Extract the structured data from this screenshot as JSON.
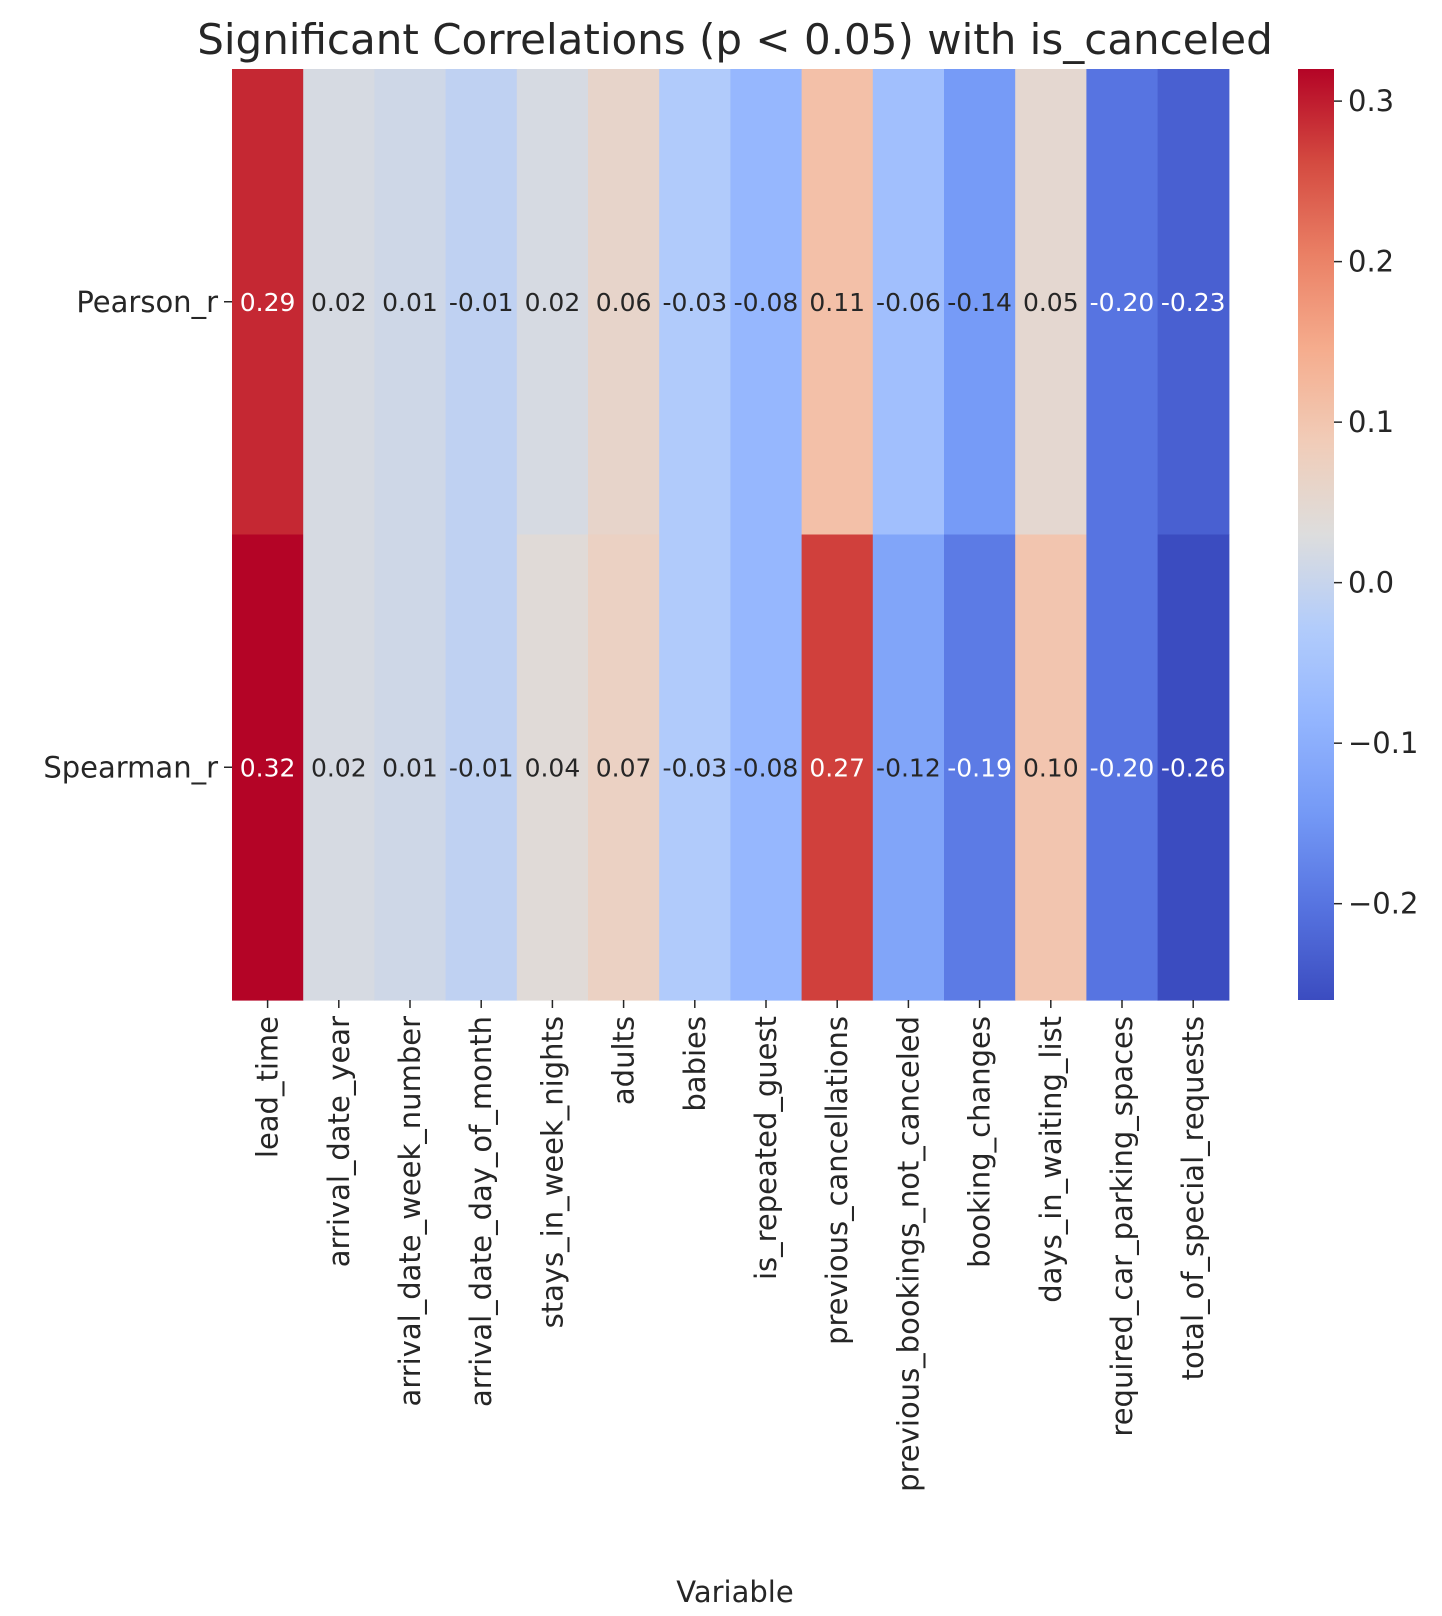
{
  "chart_data": {
    "type": "heatmap",
    "title": "Significant Correlations (p < 0.05) with is_canceled",
    "xlabel": "Variable",
    "ylabel": "",
    "columns": [
      "lead_time",
      "arrival_date_year",
      "arrival_date_week_number",
      "arrival_date_day_of_month",
      "stays_in_week_nights",
      "adults",
      "babies",
      "is_repeated_guest",
      "previous_cancellations",
      "previous_bookings_not_canceled",
      "booking_changes",
      "days_in_waiting_list",
      "required_car_parking_spaces",
      "total_of_special_requests"
    ],
    "rows": [
      "Pearson_r",
      "Spearman_r"
    ],
    "values": [
      [
        0.29,
        0.02,
        0.01,
        -0.01,
        0.02,
        0.06,
        -0.03,
        -0.08,
        0.11,
        -0.06,
        -0.14,
        0.05,
        -0.2,
        -0.23
      ],
      [
        0.32,
        0.02,
        0.01,
        -0.01,
        0.04,
        0.07,
        -0.03,
        -0.08,
        0.27,
        -0.12,
        -0.19,
        0.1,
        -0.2,
        -0.26
      ]
    ],
    "value_labels": [
      [
        "0.29",
        "0.02",
        "0.01",
        "-0.01",
        "0.02",
        "0.06",
        "-0.03",
        "-0.08",
        "0.11",
        "-0.06",
        "-0.14",
        "0.05",
        "-0.20",
        "-0.23"
      ],
      [
        "0.32",
        "0.02",
        "0.01",
        "-0.01",
        "0.04",
        "0.07",
        "-0.03",
        "-0.08",
        "0.27",
        "-0.12",
        "-0.19",
        "0.10",
        "-0.20",
        "-0.26"
      ]
    ],
    "colormap": "coolwarm",
    "vmin": -0.26,
    "vmax": 0.32,
    "colorbar_ticks": [
      0.3,
      0.2,
      0.1,
      0.0,
      -0.1,
      -0.2
    ],
    "colorbar_tick_labels": [
      "0.3",
      "0.2",
      "0.1",
      "0.0",
      "−0.1",
      "−0.2"
    ],
    "colorbar": "right",
    "grid": false,
    "colors": {
      "text_dark": "#262626",
      "text_light": "#ffffff"
    }
  }
}
